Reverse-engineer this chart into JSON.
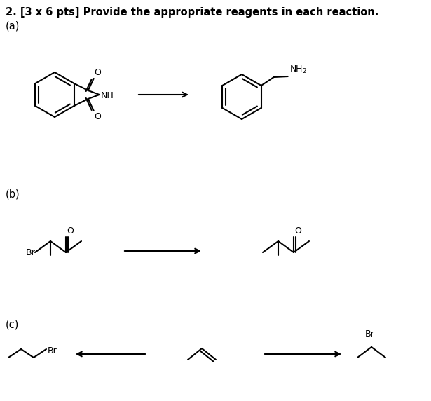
{
  "title_line1": "2. [3 x 6 pts] Provide the appropriate reagents in each reaction.",
  "label_a": "(a)",
  "label_b": "(b)",
  "label_c": "(c)",
  "background_color": "#ffffff",
  "text_color": "#000000",
  "line_color": "#000000",
  "fig_width": 6.15,
  "fig_height": 5.72,
  "dpi": 100
}
